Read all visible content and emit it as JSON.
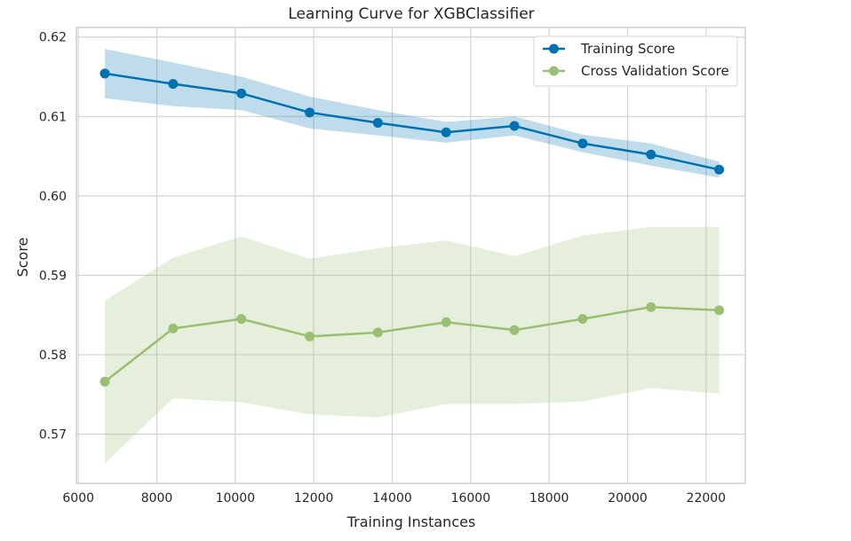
{
  "chart_data": {
    "type": "line",
    "title": "Learning Curve for XGBClassifier",
    "xlabel": "Training Instances",
    "ylabel": "Score",
    "xlim": [
      5950,
      23000
    ],
    "ylim": [
      0.5638,
      0.6212
    ],
    "x_ticks": [
      6000,
      8000,
      10000,
      12000,
      14000,
      16000,
      18000,
      20000,
      22000
    ],
    "y_ticks": [
      0.57,
      0.58,
      0.59,
      0.6,
      0.61,
      0.62
    ],
    "x_tick_labels": [
      "6000",
      "8000",
      "10000",
      "12000",
      "14000",
      "16000",
      "18000",
      "20000",
      "22000"
    ],
    "y_tick_labels": [
      "0.57",
      "0.58",
      "0.59",
      "0.60",
      "0.61",
      "0.62"
    ],
    "grid": true,
    "legend_position": "top-right",
    "x": [
      6675,
      8415,
      10155,
      11895,
      13635,
      15375,
      17115,
      18855,
      20595,
      22335
    ],
    "series": [
      {
        "name": "Training Score",
        "color": "#0072B2",
        "band_color": "#0072B2",
        "values": [
          0.6154,
          0.6141,
          0.6129,
          0.6105,
          0.6092,
          0.608,
          0.6088,
          0.6066,
          0.6052,
          0.6033
        ],
        "upper": [
          0.6185,
          0.6168,
          0.615,
          0.6125,
          0.6108,
          0.6093,
          0.61,
          0.6077,
          0.6066,
          0.6043
        ],
        "lower": [
          0.6123,
          0.6113,
          0.6108,
          0.6085,
          0.6076,
          0.6067,
          0.6076,
          0.6055,
          0.6038,
          0.6023
        ]
      },
      {
        "name": "Cross Validation Score",
        "color": "#9ABF72",
        "band_color": "#9ABF72",
        "values": [
          0.5766,
          0.5833,
          0.5845,
          0.5823,
          0.5828,
          0.5841,
          0.5831,
          0.5845,
          0.586,
          0.5856
        ],
        "upper": [
          0.5868,
          0.5922,
          0.5949,
          0.5921,
          0.5934,
          0.5944,
          0.5924,
          0.595,
          0.5961,
          0.5961
        ],
        "lower": [
          0.5663,
          0.5745,
          0.574,
          0.5725,
          0.5721,
          0.5738,
          0.5738,
          0.5741,
          0.5758,
          0.5751
        ]
      }
    ]
  }
}
